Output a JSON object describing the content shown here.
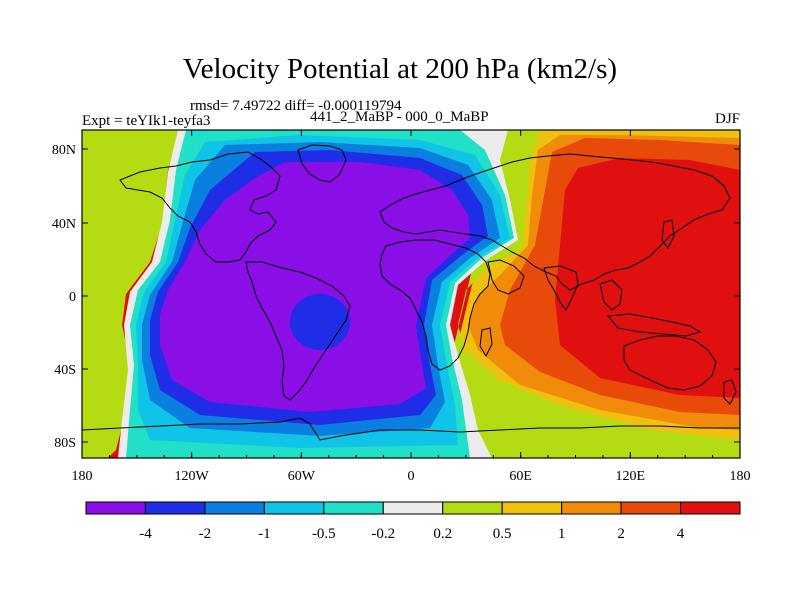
{
  "title": "Velocity Potential at 200 hPa (km2/s)",
  "stats": "rmsd= 7.49722 diff= -0.000119794",
  "expt": "Expt = teYIk1-teyfa3",
  "case": "441_2_MaBP - 000_0_MaBP",
  "season": "DJF",
  "y_ticks": [
    "80N",
    "40N",
    "0",
    "40S",
    "80S"
  ],
  "x_ticks": [
    "180",
    "120W",
    "60W",
    "0",
    "60E",
    "120E",
    "180"
  ],
  "colorbar": {
    "colors": [
      "#8a0ee6",
      "#1f2ee6",
      "#0a7fe0",
      "#10c4e8",
      "#21e0c8",
      "#ececec",
      "#b5dc12",
      "#f0c00e",
      "#f08c0a",
      "#e84a0a",
      "#e01010"
    ],
    "labels": [
      "-4",
      "-2",
      "-1",
      "-0.5",
      "-0.2",
      "0.2",
      "0.5",
      "1",
      "2",
      "4"
    ]
  }
}
